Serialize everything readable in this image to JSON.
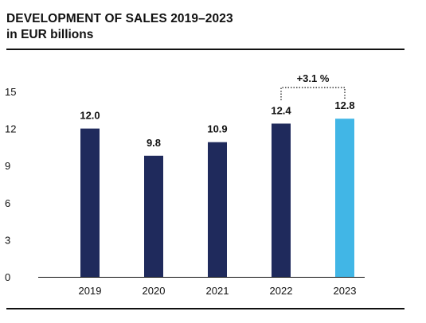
{
  "header": {
    "title": "DEVELOPMENT OF SALES 2019–2023",
    "subtitle": "in EUR billions"
  },
  "chart_data": {
    "type": "bar",
    "title": "DEVELOPMENT OF SALES 2019–2023",
    "subtitle": "in EUR billions",
    "xlabel": "",
    "ylabel": "",
    "categories": [
      "2019",
      "2020",
      "2021",
      "2022",
      "2023"
    ],
    "values": [
      12.0,
      9.8,
      10.9,
      12.4,
      12.8
    ],
    "value_labels": [
      "12.0",
      "9.8",
      "10.9",
      "12.4",
      "12.8"
    ],
    "ylim": [
      0,
      15
    ],
    "yticks": [
      0,
      3,
      6,
      9,
      12,
      15
    ],
    "grid": false,
    "colors": {
      "default": "#1f2a5c",
      "highlight": "#41b6e6",
      "highlight_category": "2023",
      "text": "#111111"
    },
    "annotations": [
      {
        "text": "+3.1 %",
        "from": "2022",
        "to": "2023",
        "style": "dotted-bracket"
      }
    ]
  }
}
